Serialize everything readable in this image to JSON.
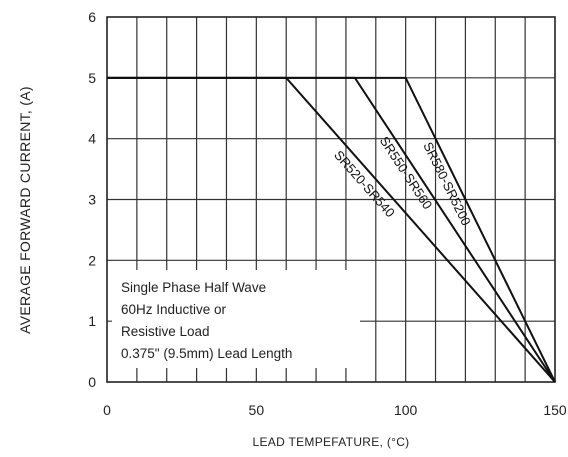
{
  "chart_data": {
    "type": "line",
    "title": "",
    "xlabel": "LEAD TEMPEFATURE, (°C)",
    "ylabel": "AVERAGE FORWARD CURRENT, (A)",
    "xlim": [
      0,
      150
    ],
    "ylim": [
      0,
      6
    ],
    "xticks": [
      "0",
      "50",
      "100",
      "150"
    ],
    "yticks": [
      "0",
      "1",
      "2",
      "3",
      "4",
      "5",
      "6"
    ],
    "grid": true,
    "series": [
      {
        "name": "SR520-SR540",
        "x": [
          0,
          60,
          150
        ],
        "y": [
          5,
          5,
          0
        ]
      },
      {
        "name": "SR550-SR560",
        "x": [
          0,
          83,
          150
        ],
        "y": [
          5,
          5,
          0
        ]
      },
      {
        "name": "SR580-SR5200",
        "x": [
          0,
          100,
          150
        ],
        "y": [
          5,
          5,
          0
        ]
      }
    ],
    "annotations": [
      "Single Phase Half Wave",
      "60Hz Inductive or",
      "Resistive Load",
      "0.375\" (9.5mm) Lead Length"
    ]
  }
}
